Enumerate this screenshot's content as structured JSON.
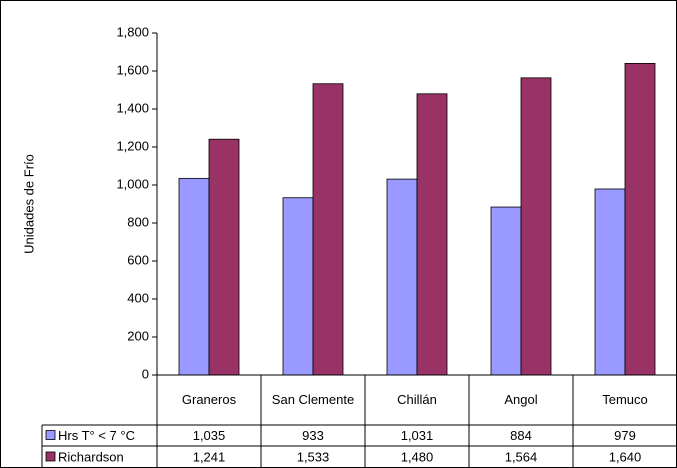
{
  "chart_data": {
    "type": "bar",
    "y_label": "Unidades de Frío",
    "categories": [
      "Graneros",
      "San Clemente",
      "Chillán",
      "Angol",
      "Temuco"
    ],
    "series": [
      {
        "name": "Hrs T° < 7 °C",
        "color": "#9999ff",
        "values": [
          1035,
          933,
          1031,
          884,
          979
        ],
        "value_labels": [
          "1,035",
          "933",
          "1,031",
          "884",
          "979"
        ]
      },
      {
        "name": "Richardson",
        "color": "#993366",
        "values": [
          1241,
          1533,
          1480,
          1564,
          1640
        ],
        "value_labels": [
          "1,241",
          "1,533",
          "1,480",
          "1,564",
          "1,640"
        ]
      }
    ],
    "ylim": [
      0,
      1800
    ],
    "yticks": [
      0,
      200,
      400,
      600,
      800,
      {
        "value": 1000,
        "label": "1,000"
      },
      {
        "value": 1200,
        "label": "1,200"
      },
      {
        "value": 1400,
        "label": "1,400"
      },
      {
        "value": 1600,
        "label": "1,600"
      },
      {
        "value": 1800,
        "label": "1,800"
      }
    ],
    "data_table": true
  }
}
